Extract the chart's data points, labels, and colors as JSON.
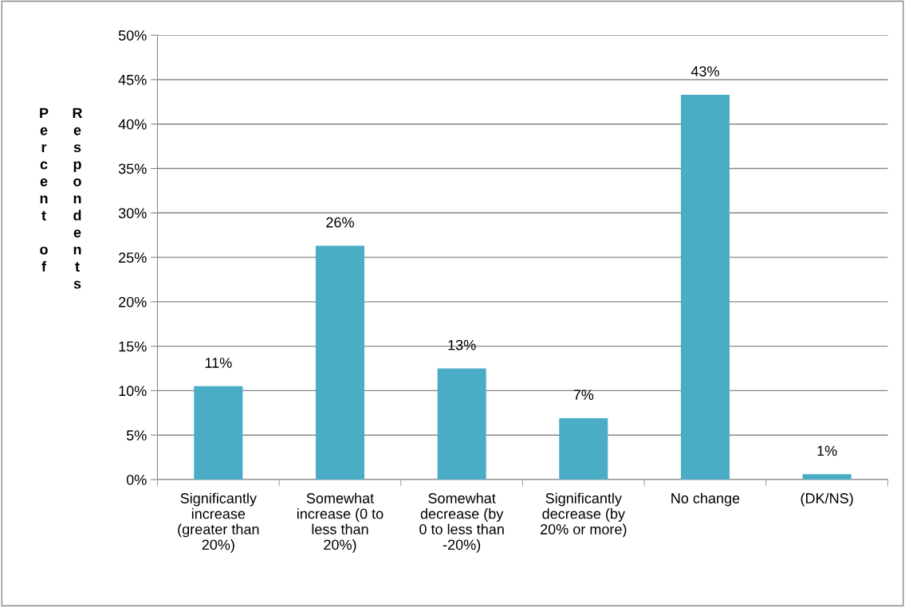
{
  "chart_data": {
    "type": "bar",
    "ylabel": "Percent of Respondents",
    "categories": [
      "Significantly\nincrease\n(greater than\n20%)",
      "Somewhat\nincrease (0 to\nless than\n20%)",
      "Somewhat\ndecrease (by\n0 to less than\n-20%)",
      "Significantly\ndecrease (by\n20% or more)",
      "No change",
      "(DK/NS)"
    ],
    "values": [
      10.5,
      26.3,
      12.5,
      6.9,
      43.3,
      0.6
    ],
    "value_labels": [
      "11%",
      "26%",
      "13%",
      "7%",
      "43%",
      "1%"
    ],
    "color": "#4bacc6",
    "ylim": [
      0,
      50
    ],
    "yticks": [
      {
        "value": 0,
        "label": "0%"
      },
      {
        "value": 5,
        "label": "5%"
      },
      {
        "value": 10,
        "label": "10%"
      },
      {
        "value": 15,
        "label": "15%"
      },
      {
        "value": 20,
        "label": "20%"
      },
      {
        "value": 25,
        "label": "25%"
      },
      {
        "value": 30,
        "label": "30%"
      },
      {
        "value": 35,
        "label": "35%"
      },
      {
        "value": 40,
        "label": "40%"
      },
      {
        "value": 45,
        "label": "45%"
      },
      {
        "value": 50,
        "label": "50%"
      }
    ],
    "grid": "y",
    "legend": false
  }
}
